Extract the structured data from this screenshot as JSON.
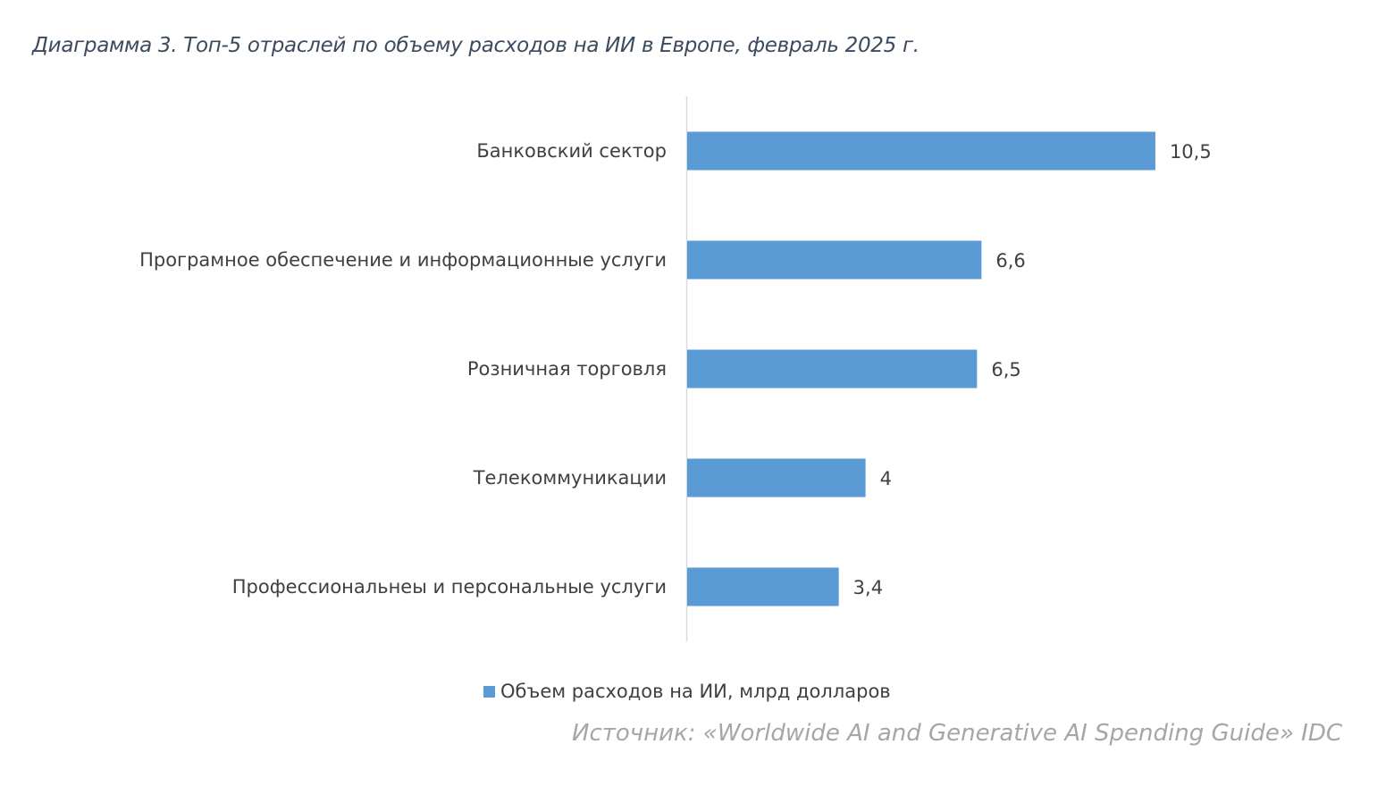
{
  "chart_data": {
    "type": "bar",
    "orientation": "horizontal",
    "title": "Диаграмма 3. Топ-5 отраслей по объему расходов на ИИ в Европе, февраль 2025 г.",
    "categories": [
      "Банковский сектор",
      "Програмное обеспечение и информационные услуги",
      "Розничная торговля",
      "Телекоммуникации",
      "Профессиональнеы и персональные услуги"
    ],
    "series": [
      {
        "name": "Объем расходов на ИИ, млрд долларов",
        "values": [
          10.5,
          6.6,
          6.5,
          4,
          3.4
        ],
        "color": "#5b9bd5"
      }
    ],
    "data_labels": [
      "10,5",
      "6,6",
      "6,5",
      "4",
      "3,4"
    ],
    "xlim": [
      0,
      15
    ],
    "grid": false,
    "legend": "bottom",
    "source": "Источник: «Worldwide AI and Generative AI Spending Guide» IDC"
  }
}
